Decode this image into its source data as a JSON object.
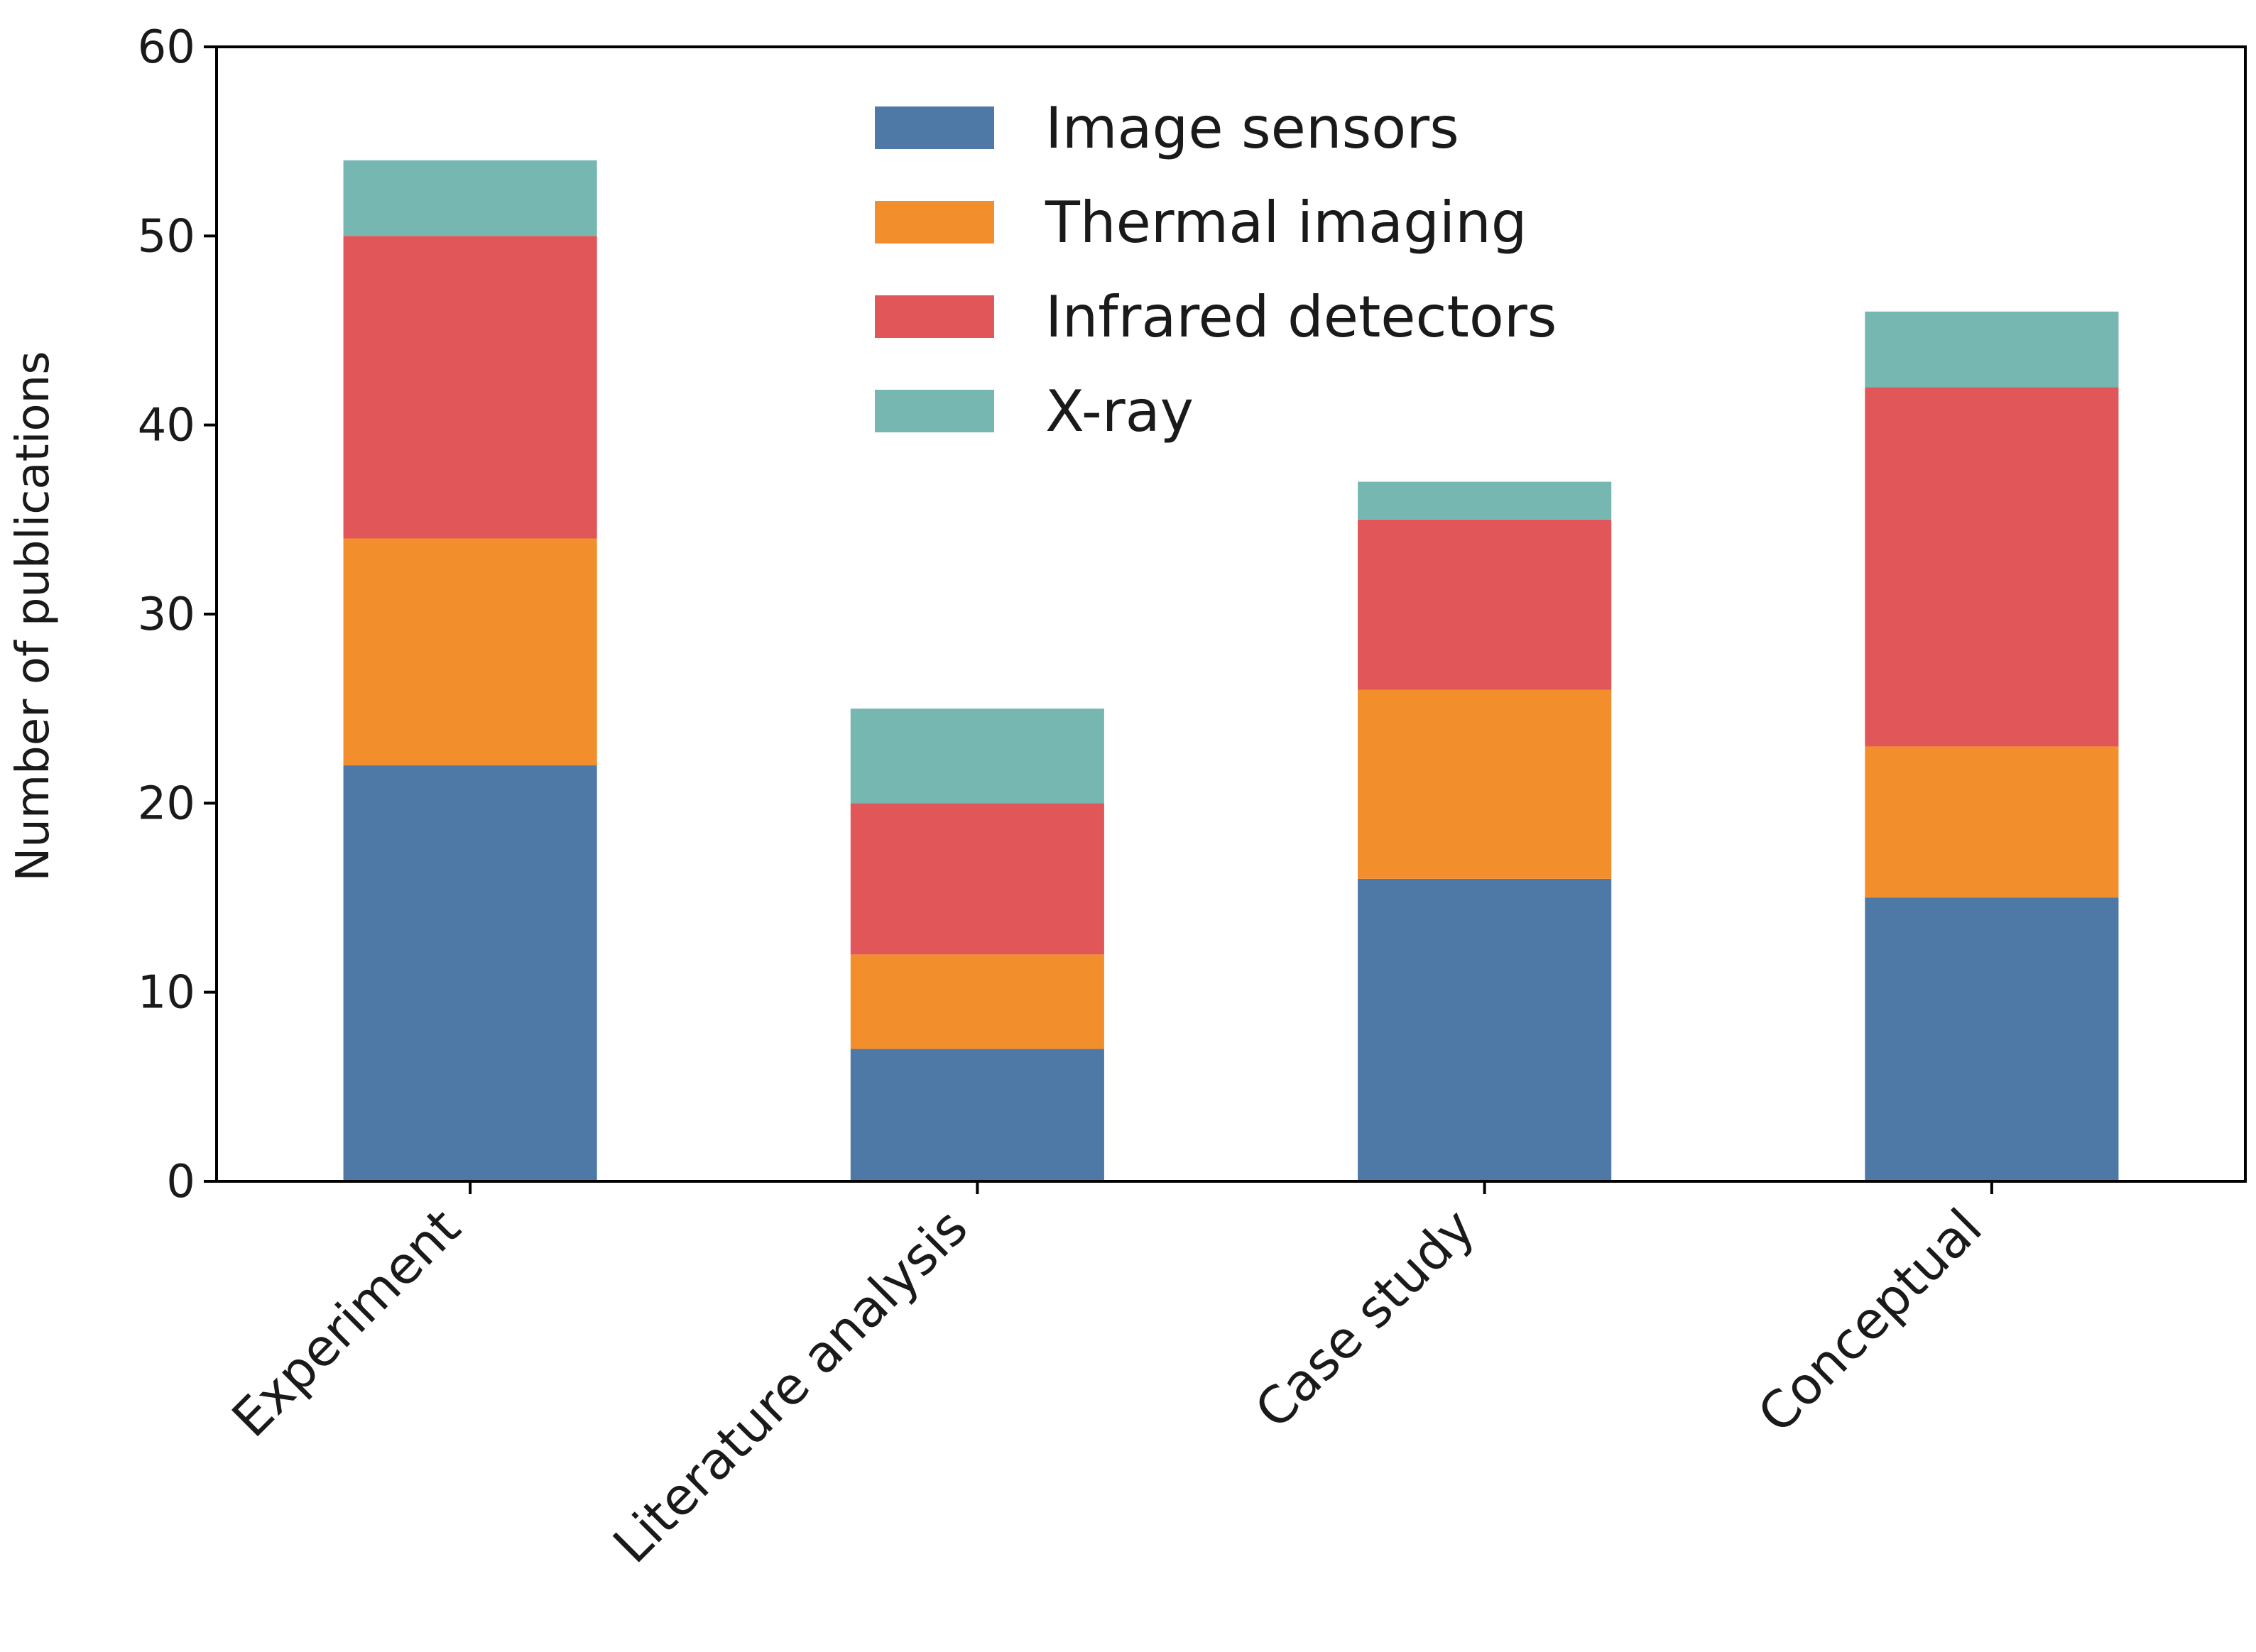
{
  "chart_data": {
    "type": "bar",
    "stacked": true,
    "title": "",
    "xlabel": "",
    "ylabel": "Number of publications",
    "ylim": [
      0,
      60
    ],
    "yticks": [
      0,
      10,
      20,
      30,
      40,
      50,
      60
    ],
    "categories": [
      "Experiment",
      "Literature analysis",
      "Case study",
      "Conceptual"
    ],
    "series": [
      {
        "name": "Image sensors",
        "color": "#4e79a7",
        "values": [
          22,
          7,
          16,
          15
        ]
      },
      {
        "name": "Thermal imaging",
        "color": "#f28e2b",
        "values": [
          12,
          5,
          10,
          8
        ]
      },
      {
        "name": "Infrared detectors",
        "color": "#e15759",
        "values": [
          16,
          8,
          9,
          19
        ]
      },
      {
        "name": "X-ray",
        "color": "#76b7b2",
        "values": [
          4,
          5,
          2,
          4
        ]
      }
    ],
    "legend_position": "top-center",
    "grid": false
  }
}
